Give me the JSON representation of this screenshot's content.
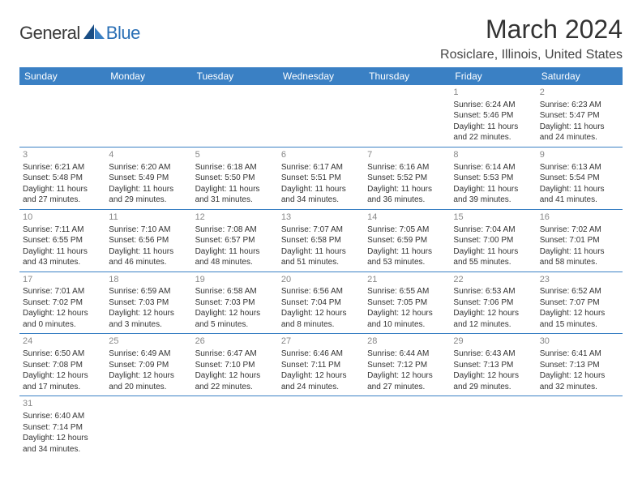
{
  "logo": {
    "text1": "General",
    "text2": "Blue"
  },
  "title": "March 2024",
  "location": "Rosiclare, Illinois, United States",
  "colors": {
    "header_bg": "#3a80c4",
    "header_fg": "#ffffff",
    "border": "#3a80c4",
    "daynum": "#888888",
    "text": "#333333"
  },
  "weekdays": [
    "Sunday",
    "Monday",
    "Tuesday",
    "Wednesday",
    "Thursday",
    "Friday",
    "Saturday"
  ],
  "weeks": [
    [
      null,
      null,
      null,
      null,
      null,
      {
        "n": "1",
        "sr": "Sunrise: 6:24 AM",
        "ss": "Sunset: 5:46 PM",
        "d1": "Daylight: 11 hours",
        "d2": "and 22 minutes."
      },
      {
        "n": "2",
        "sr": "Sunrise: 6:23 AM",
        "ss": "Sunset: 5:47 PM",
        "d1": "Daylight: 11 hours",
        "d2": "and 24 minutes."
      }
    ],
    [
      {
        "n": "3",
        "sr": "Sunrise: 6:21 AM",
        "ss": "Sunset: 5:48 PM",
        "d1": "Daylight: 11 hours",
        "d2": "and 27 minutes."
      },
      {
        "n": "4",
        "sr": "Sunrise: 6:20 AM",
        "ss": "Sunset: 5:49 PM",
        "d1": "Daylight: 11 hours",
        "d2": "and 29 minutes."
      },
      {
        "n": "5",
        "sr": "Sunrise: 6:18 AM",
        "ss": "Sunset: 5:50 PM",
        "d1": "Daylight: 11 hours",
        "d2": "and 31 minutes."
      },
      {
        "n": "6",
        "sr": "Sunrise: 6:17 AM",
        "ss": "Sunset: 5:51 PM",
        "d1": "Daylight: 11 hours",
        "d2": "and 34 minutes."
      },
      {
        "n": "7",
        "sr": "Sunrise: 6:16 AM",
        "ss": "Sunset: 5:52 PM",
        "d1": "Daylight: 11 hours",
        "d2": "and 36 minutes."
      },
      {
        "n": "8",
        "sr": "Sunrise: 6:14 AM",
        "ss": "Sunset: 5:53 PM",
        "d1": "Daylight: 11 hours",
        "d2": "and 39 minutes."
      },
      {
        "n": "9",
        "sr": "Sunrise: 6:13 AM",
        "ss": "Sunset: 5:54 PM",
        "d1": "Daylight: 11 hours",
        "d2": "and 41 minutes."
      }
    ],
    [
      {
        "n": "10",
        "sr": "Sunrise: 7:11 AM",
        "ss": "Sunset: 6:55 PM",
        "d1": "Daylight: 11 hours",
        "d2": "and 43 minutes."
      },
      {
        "n": "11",
        "sr": "Sunrise: 7:10 AM",
        "ss": "Sunset: 6:56 PM",
        "d1": "Daylight: 11 hours",
        "d2": "and 46 minutes."
      },
      {
        "n": "12",
        "sr": "Sunrise: 7:08 AM",
        "ss": "Sunset: 6:57 PM",
        "d1": "Daylight: 11 hours",
        "d2": "and 48 minutes."
      },
      {
        "n": "13",
        "sr": "Sunrise: 7:07 AM",
        "ss": "Sunset: 6:58 PM",
        "d1": "Daylight: 11 hours",
        "d2": "and 51 minutes."
      },
      {
        "n": "14",
        "sr": "Sunrise: 7:05 AM",
        "ss": "Sunset: 6:59 PM",
        "d1": "Daylight: 11 hours",
        "d2": "and 53 minutes."
      },
      {
        "n": "15",
        "sr": "Sunrise: 7:04 AM",
        "ss": "Sunset: 7:00 PM",
        "d1": "Daylight: 11 hours",
        "d2": "and 55 minutes."
      },
      {
        "n": "16",
        "sr": "Sunrise: 7:02 AM",
        "ss": "Sunset: 7:01 PM",
        "d1": "Daylight: 11 hours",
        "d2": "and 58 minutes."
      }
    ],
    [
      {
        "n": "17",
        "sr": "Sunrise: 7:01 AM",
        "ss": "Sunset: 7:02 PM",
        "d1": "Daylight: 12 hours",
        "d2": "and 0 minutes."
      },
      {
        "n": "18",
        "sr": "Sunrise: 6:59 AM",
        "ss": "Sunset: 7:03 PM",
        "d1": "Daylight: 12 hours",
        "d2": "and 3 minutes."
      },
      {
        "n": "19",
        "sr": "Sunrise: 6:58 AM",
        "ss": "Sunset: 7:03 PM",
        "d1": "Daylight: 12 hours",
        "d2": "and 5 minutes."
      },
      {
        "n": "20",
        "sr": "Sunrise: 6:56 AM",
        "ss": "Sunset: 7:04 PM",
        "d1": "Daylight: 12 hours",
        "d2": "and 8 minutes."
      },
      {
        "n": "21",
        "sr": "Sunrise: 6:55 AM",
        "ss": "Sunset: 7:05 PM",
        "d1": "Daylight: 12 hours",
        "d2": "and 10 minutes."
      },
      {
        "n": "22",
        "sr": "Sunrise: 6:53 AM",
        "ss": "Sunset: 7:06 PM",
        "d1": "Daylight: 12 hours",
        "d2": "and 12 minutes."
      },
      {
        "n": "23",
        "sr": "Sunrise: 6:52 AM",
        "ss": "Sunset: 7:07 PM",
        "d1": "Daylight: 12 hours",
        "d2": "and 15 minutes."
      }
    ],
    [
      {
        "n": "24",
        "sr": "Sunrise: 6:50 AM",
        "ss": "Sunset: 7:08 PM",
        "d1": "Daylight: 12 hours",
        "d2": "and 17 minutes."
      },
      {
        "n": "25",
        "sr": "Sunrise: 6:49 AM",
        "ss": "Sunset: 7:09 PM",
        "d1": "Daylight: 12 hours",
        "d2": "and 20 minutes."
      },
      {
        "n": "26",
        "sr": "Sunrise: 6:47 AM",
        "ss": "Sunset: 7:10 PM",
        "d1": "Daylight: 12 hours",
        "d2": "and 22 minutes."
      },
      {
        "n": "27",
        "sr": "Sunrise: 6:46 AM",
        "ss": "Sunset: 7:11 PM",
        "d1": "Daylight: 12 hours",
        "d2": "and 24 minutes."
      },
      {
        "n": "28",
        "sr": "Sunrise: 6:44 AM",
        "ss": "Sunset: 7:12 PM",
        "d1": "Daylight: 12 hours",
        "d2": "and 27 minutes."
      },
      {
        "n": "29",
        "sr": "Sunrise: 6:43 AM",
        "ss": "Sunset: 7:13 PM",
        "d1": "Daylight: 12 hours",
        "d2": "and 29 minutes."
      },
      {
        "n": "30",
        "sr": "Sunrise: 6:41 AM",
        "ss": "Sunset: 7:13 PM",
        "d1": "Daylight: 12 hours",
        "d2": "and 32 minutes."
      }
    ],
    [
      {
        "n": "31",
        "sr": "Sunrise: 6:40 AM",
        "ss": "Sunset: 7:14 PM",
        "d1": "Daylight: 12 hours",
        "d2": "and 34 minutes."
      },
      null,
      null,
      null,
      null,
      null,
      null
    ]
  ]
}
